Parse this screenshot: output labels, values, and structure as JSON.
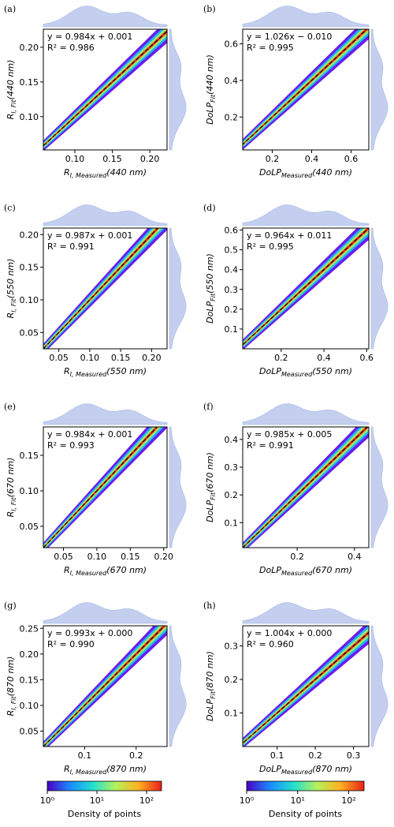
{
  "chart_data": [
    {
      "type": "scatter",
      "panel": "(a)",
      "equation": "y = 0.984x + 0.001",
      "r2": "R² = 0.986",
      "xlabel": [
        "R",
        "I, Measured",
        "(440 nm)"
      ],
      "ylabel": [
        "R",
        "I, Fit",
        "(440 nm)"
      ],
      "xlim": [
        0.058,
        0.223
      ],
      "ylim": [
        0.052,
        0.226
      ],
      "xticks": [
        {
          "value": 0.1,
          "label": "0.10"
        },
        0.15,
        {
          "value": 0.2,
          "label": "0.20"
        }
      ],
      "yticks": [
        {
          "value": 0.1,
          "label": "0.10"
        },
        0.15,
        {
          "value": 0.2,
          "label": "0.20"
        }
      ]
    },
    {
      "type": "scatter",
      "panel": "(b)",
      "equation": "y = 1.026x − 0.010",
      "r2": "R² = 0.995",
      "xlabel": [
        "DoLP",
        "Measured",
        "(440 nm)"
      ],
      "ylabel": [
        "DoLP",
        "Fit",
        "(440 nm)"
      ],
      "xlim": [
        0.05,
        0.69
      ],
      "ylim": [
        0.02,
        0.68
      ],
      "xticks": [
        0.2,
        0.4,
        0.6
      ],
      "yticks": [
        0.2,
        0.4,
        0.6
      ]
    },
    {
      "type": "scatter",
      "panel": "(c)",
      "equation": "y = 0.987x + 0.001",
      "r2": "R² = 0.991",
      "xlabel": [
        "R",
        "I, Measured",
        "(550 nm)"
      ],
      "ylabel": [
        "R",
        "I, Fit",
        "(550 nm)"
      ],
      "xlim": [
        0.025,
        0.225
      ],
      "ylim": [
        0.025,
        0.21
      ],
      "xticks": [
        0.05,
        {
          "value": 0.1,
          "label": "0.10"
        },
        0.15,
        {
          "value": 0.2,
          "label": "0.20"
        }
      ],
      "yticks": [
        0.05,
        {
          "value": 0.1,
          "label": "0.10"
        },
        0.15,
        {
          "value": 0.2,
          "label": "0.20"
        }
      ]
    },
    {
      "type": "scatter",
      "panel": "(d)",
      "equation": "y = 0.964x + 0.011",
      "r2": "R² = 0.995",
      "xlabel": [
        "DoLP",
        "Measured",
        "(550 nm)"
      ],
      "ylabel": [
        "DoLP",
        "Fit",
        "(550 nm)"
      ],
      "xlim": [
        0.02,
        0.61
      ],
      "ylim": [
        0.0,
        0.61
      ],
      "xticks": [
        0.2,
        0.4,
        0.6
      ],
      "yticks": [
        0.1,
        0.2,
        0.3,
        0.4,
        0.5,
        0.6
      ]
    },
    {
      "type": "scatter",
      "panel": "(e)",
      "equation": "y = 0.984x + 0.001",
      "r2": "R² = 0.993",
      "xlabel": [
        "R",
        "I, Measured",
        "(670 nm)"
      ],
      "ylabel": [
        "R",
        "I, Fit",
        "(670 nm)"
      ],
      "xlim": [
        0.02,
        0.205
      ],
      "ylim": [
        0.02,
        0.19
      ],
      "xticks": [
        0.05,
        {
          "value": 0.1,
          "label": "0.10"
        },
        0.15,
        {
          "value": 0.2,
          "label": "0.20"
        }
      ],
      "yticks": [
        0.05,
        {
          "value": 0.1,
          "label": "0.10"
        },
        0.15
      ]
    },
    {
      "type": "scatter",
      "panel": "(f)",
      "equation": "y = 0.985x + 0.005",
      "r2": "R² = 0.991",
      "xlabel": [
        "DoLP",
        "Measured",
        "(670 nm)"
      ],
      "ylabel": [
        "DoLP",
        "Fit",
        "(670 nm)"
      ],
      "xlim": [
        0.01,
        0.45
      ],
      "ylim": [
        0.01,
        0.445
      ],
      "xticks": [
        0.2,
        0.4
      ],
      "yticks": [
        0.1,
        0.2,
        0.3,
        0.4
      ]
    },
    {
      "type": "scatter",
      "panel": "(g)",
      "equation": "y = 0.993x + 0.000",
      "r2": "R² = 0.990",
      "xlabel": [
        "R",
        "I, Measured",
        "(870 nm)"
      ],
      "ylabel": [
        "R",
        "I, Fit",
        "(870 nm)"
      ],
      "xlim": [
        0.02,
        0.26
      ],
      "ylim": [
        0.02,
        0.255
      ],
      "xticks": [
        0.1,
        0.2
      ],
      "yticks": [
        0.05,
        {
          "value": 0.1,
          "label": "0.10"
        },
        0.15,
        {
          "value": 0.2,
          "label": "0.20"
        },
        0.25
      ]
    },
    {
      "type": "scatter",
      "panel": "(h)",
      "equation": "y = 1.004x + 0.000",
      "r2": "R² = 0.960",
      "xlabel": [
        "DoLP",
        "Measured",
        "(870 nm)"
      ],
      "ylabel": [
        "DoLP",
        "Fit",
        "(870 nm)"
      ],
      "xlim": [
        0.01,
        0.34
      ],
      "ylim": [
        0.0,
        0.36
      ],
      "xticks": [
        0.1,
        0.2,
        0.3
      ],
      "yticks": [
        0.1,
        0.2,
        0.3
      ]
    },
    {
      "type": "colorbar",
      "label": "Density of points",
      "log_scale": true,
      "colors": [
        "#4b00c8",
        "#1a8cff",
        "#22e0d0",
        "#b6f25a",
        "#ffb020",
        "#e8201a"
      ],
      "xlim": [
        1,
        200
      ],
      "xticks": [
        {
          "value": 1,
          "label": "10⁰"
        },
        {
          "value": 10,
          "label": "10¹"
        },
        {
          "value": 100,
          "label": "10²"
        }
      ]
    },
    {
      "type": "colorbar",
      "label": "Density of points",
      "log_scale": true,
      "colors": [
        "#4b00c8",
        "#1a8cff",
        "#22e0d0",
        "#b6f25a",
        "#ffb020",
        "#e8201a"
      ],
      "xlim": [
        1,
        200
      ],
      "xticks": [
        {
          "value": 1,
          "label": "10⁰"
        },
        {
          "value": 10,
          "label": "10¹"
        },
        {
          "value": 100,
          "label": "10²"
        }
      ]
    }
  ]
}
